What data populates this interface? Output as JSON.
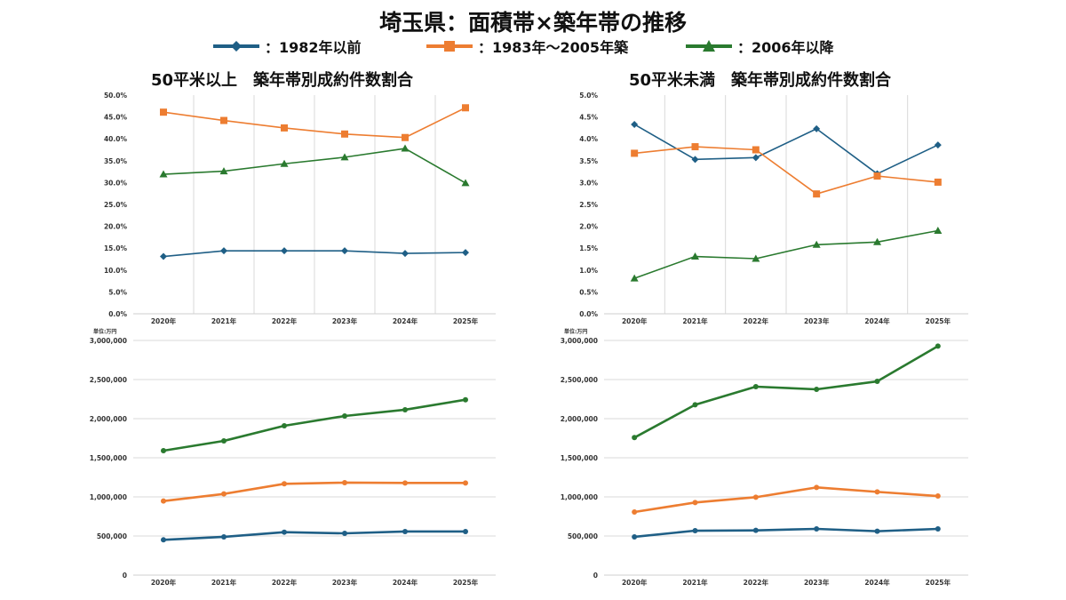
{
  "title": "埼玉県：面積帯×築年帯の推移",
  "legend": [
    {
      "label": "：1982年以前",
      "color": "#1f5f86",
      "marker": "diamond"
    },
    {
      "label": "：1983年～2005年築",
      "color": "#ed7d31",
      "marker": "square"
    },
    {
      "label": "：2006年以降",
      "color": "#2a7a2f",
      "marker": "triangle"
    }
  ],
  "chart_data": [
    {
      "type": "line",
      "title": "50平米以上　築年帯別成約件数割合",
      "categories": [
        "2020年",
        "2021年",
        "2022年",
        "2023年",
        "2024年",
        "2025年"
      ],
      "ylim": [
        0,
        50
      ],
      "yticks": [
        "0.0%",
        "5.0%",
        "10.0%",
        "15.0%",
        "20.0%",
        "25.0%",
        "30.0%",
        "35.0%",
        "40.0%",
        "45.0%",
        "50.0%"
      ],
      "grid": "vertical",
      "series": [
        {
          "name": "：1982年以前",
          "values": [
            13.1,
            14.4,
            14.4,
            14.4,
            13.8,
            14.0
          ]
        },
        {
          "name": "：1983年～2005年築",
          "values": [
            46.1,
            44.2,
            42.5,
            41.1,
            40.3,
            47.1
          ]
        },
        {
          "name": "：2006年以降",
          "values": [
            31.9,
            32.6,
            34.3,
            35.8,
            37.8,
            29.9
          ]
        }
      ]
    },
    {
      "type": "line",
      "title": "50平米未満　築年帯別成約件数割合",
      "categories": [
        "2020年",
        "2021年",
        "2022年",
        "2023年",
        "2024年",
        "2025年"
      ],
      "ylim": [
        0,
        5
      ],
      "yticks": [
        "0.0%",
        "0.5%",
        "1.0%",
        "1.5%",
        "2.0%",
        "2.5%",
        "3.0%",
        "3.5%",
        "4.0%",
        "4.5%",
        "5.0%"
      ],
      "grid": "vertical",
      "series": [
        {
          "name": "：1982年以前",
          "values": [
            4.33,
            3.53,
            3.57,
            4.23,
            3.2,
            3.86
          ]
        },
        {
          "name": "：1983年～2005年築",
          "values": [
            3.67,
            3.82,
            3.75,
            2.74,
            3.15,
            3.01
          ]
        },
        {
          "name": "：2006年以降",
          "values": [
            0.81,
            1.31,
            1.26,
            1.58,
            1.64,
            1.9
          ]
        }
      ]
    },
    {
      "type": "line",
      "unit_label": "単位:万円",
      "categories": [
        "2020年",
        "2021年",
        "2022年",
        "2023年",
        "2024年",
        "2025年"
      ],
      "ylim": [
        0,
        3000000
      ],
      "yticks": [
        "0",
        "500,000",
        "1,000,000",
        "1,500,000",
        "2,000,000",
        "2,500,000",
        "3,000,000"
      ],
      "grid": "horizontal",
      "series": [
        {
          "name": "：1982年以前",
          "values": [
            451000,
            489000,
            549000,
            534000,
            557000,
            557000
          ]
        },
        {
          "name": "：1983年～2005年築",
          "values": [
            947000,
            1038000,
            1167000,
            1182000,
            1178000,
            1178000
          ]
        },
        {
          "name": "：2006年以降",
          "values": [
            1591000,
            1716000,
            1909000,
            2034000,
            2114000,
            2242000
          ]
        }
      ]
    },
    {
      "type": "line",
      "unit_label": "単位:万円",
      "categories": [
        "2020年",
        "2021年",
        "2022年",
        "2023年",
        "2024年",
        "2025年"
      ],
      "ylim": [
        0,
        3000000
      ],
      "yticks": [
        "0",
        "500,000",
        "1,000,000",
        "1,500,000",
        "2,000,000",
        "2,500,000",
        "3,000,000"
      ],
      "grid": "horizontal",
      "series": [
        {
          "name": "：1982年以前",
          "values": [
            489000,
            568000,
            572000,
            591000,
            561000,
            591000
          ]
        },
        {
          "name": "：1983年～2005年築",
          "values": [
            807000,
            928000,
            996000,
            1121000,
            1064000,
            1011000
          ]
        },
        {
          "name": "：2006年以降",
          "values": [
            1758000,
            2178000,
            2409000,
            2375000,
            2477000,
            2928000
          ]
        }
      ]
    }
  ]
}
